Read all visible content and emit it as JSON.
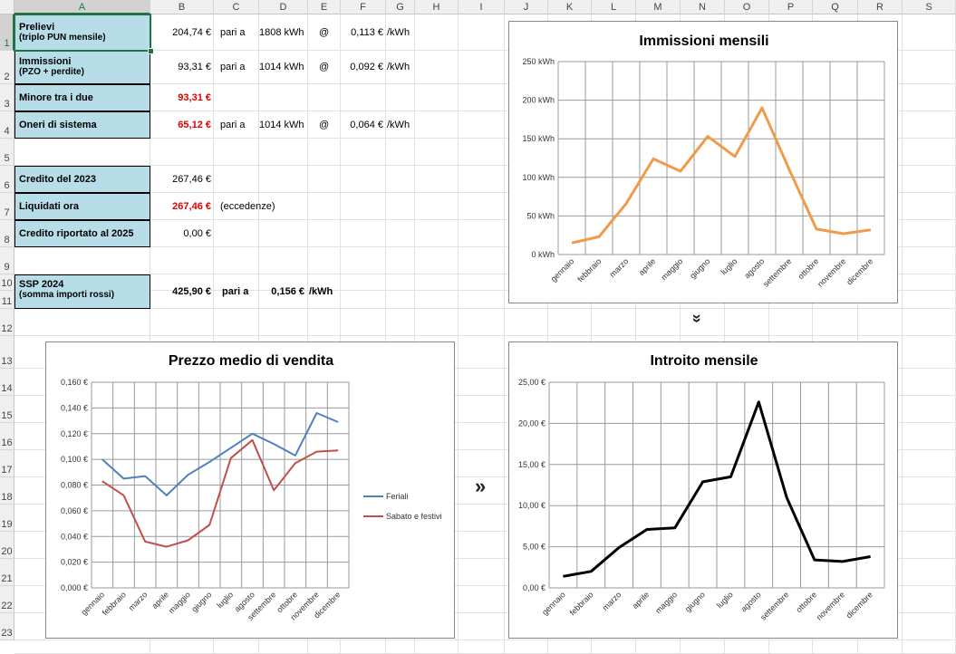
{
  "columns": [
    "A",
    "B",
    "C",
    "D",
    "E",
    "F",
    "G",
    "H",
    "I",
    "J",
    "K",
    "L",
    "M",
    "N",
    "O",
    "P",
    "Q",
    "R",
    "S"
  ],
  "rows": [
    "1",
    "2",
    "3",
    "4",
    "5",
    "6",
    "7",
    "8",
    "9",
    "10",
    "11",
    "12",
    "13",
    "14",
    "15",
    "16",
    "17",
    "18",
    "19",
    "20",
    "21",
    "22",
    "23"
  ],
  "rows_table": {
    "prelievi": {
      "l1": "Prelievi",
      "l2": "(triplo PUN mensile)",
      "amount": "204,74 €",
      "pari": "pari a",
      "kwh": "1808 kWh",
      "at": "@",
      "price": "0,113 €",
      "unit": "/kWh"
    },
    "immissioni": {
      "l1": "Immissioni",
      "l2": "(PZO + perdite)",
      "amount": "93,31 €",
      "pari": "pari a",
      "kwh": "1014 kWh",
      "at": "@",
      "price": "0,092 €",
      "unit": "/kWh"
    },
    "minore": {
      "l1": "Minore tra i due",
      "amount": "93,31 €"
    },
    "oneri": {
      "l1": "Oneri di sistema",
      "amount": "65,12 €",
      "pari": "pari a",
      "kwh": "1014 kWh",
      "at": "@",
      "price": "0,064 €",
      "unit": "/kWh"
    },
    "credito2023": {
      "l1": "Credito del 2023",
      "amount": "267,46 €"
    },
    "liquidati": {
      "l1": "Liquidati ora",
      "amount": "267,46 €",
      "note": "(eccedenze)"
    },
    "riportato": {
      "l1": "Credito riportato al 2025",
      "amount": "0,00 €"
    },
    "ssp": {
      "l1": "SSP 2024",
      "l2": "(somma importi rossi)",
      "amount": "425,90 €",
      "pari": "pari a",
      "price": "0,156 €",
      "unit": "/kWh"
    }
  },
  "arrows": {
    "down": "»",
    "right": "»"
  },
  "chart_data": [
    {
      "type": "line",
      "title": "Immissioni mensili",
      "categories": [
        "gennaio",
        "febbraio",
        "marzo",
        "aprile",
        "maggio",
        "giugno",
        "luglio",
        "agosto",
        "settembre",
        "ottobre",
        "novembre",
        "dicembre"
      ],
      "series": [
        {
          "values": [
            15,
            23,
            66,
            124,
            108,
            153,
            127,
            190,
            110,
            33,
            27,
            32
          ],
          "color": "#f09a4a"
        }
      ],
      "yticks": [
        "0 kWh",
        "50 kWh",
        "100 kWh",
        "150 kWh",
        "200 kWh",
        "250 kWh"
      ],
      "ylim": [
        0,
        250
      ],
      "grid": true
    },
    {
      "type": "line",
      "title": "Prezzo medio di vendita",
      "categories": [
        "gennaio",
        "febbraio",
        "marzo",
        "aprile",
        "maggio",
        "giugno",
        "luglio",
        "agosto",
        "settembre",
        "ottobre",
        "novembre",
        "dicembre"
      ],
      "series": [
        {
          "name": "Feriali",
          "values": [
            0.1,
            0.085,
            0.087,
            0.072,
            0.088,
            0.098,
            0.109,
            0.12,
            0.112,
            0.103,
            0.136,
            0.129
          ],
          "color": "#4f81bd"
        },
        {
          "name": "Sabato e festivi",
          "values": [
            0.083,
            0.072,
            0.036,
            0.032,
            0.037,
            0.049,
            0.101,
            0.115,
            0.076,
            0.097,
            0.106,
            0.107
          ],
          "color": "#c0504d"
        }
      ],
      "yticks": [
        "0,000 €",
        "0,020 €",
        "0,040 €",
        "0,060 €",
        "0,080 €",
        "0,100 €",
        "0,120 €",
        "0,140 €",
        "0,160 €"
      ],
      "ylim": [
        0,
        0.16
      ],
      "legend": "right",
      "grid": true
    },
    {
      "type": "line",
      "title": "Introito mensile",
      "categories": [
        "gennaio",
        "febbraio",
        "marzo",
        "aprile",
        "maggio",
        "giugno",
        "luglio",
        "agosto",
        "settembre",
        "ottobre",
        "novembre",
        "dicembre"
      ],
      "series": [
        {
          "values": [
            1.4,
            2.0,
            4.9,
            7.1,
            7.3,
            12.9,
            13.5,
            22.6,
            11.0,
            3.4,
            3.2,
            3.8
          ],
          "color": "#000000"
        }
      ],
      "yticks": [
        "0,00 €",
        "5,00 €",
        "10,00 €",
        "15,00 €",
        "20,00 €",
        "25,00 €"
      ],
      "ylim": [
        0,
        25
      ],
      "grid": true
    }
  ]
}
